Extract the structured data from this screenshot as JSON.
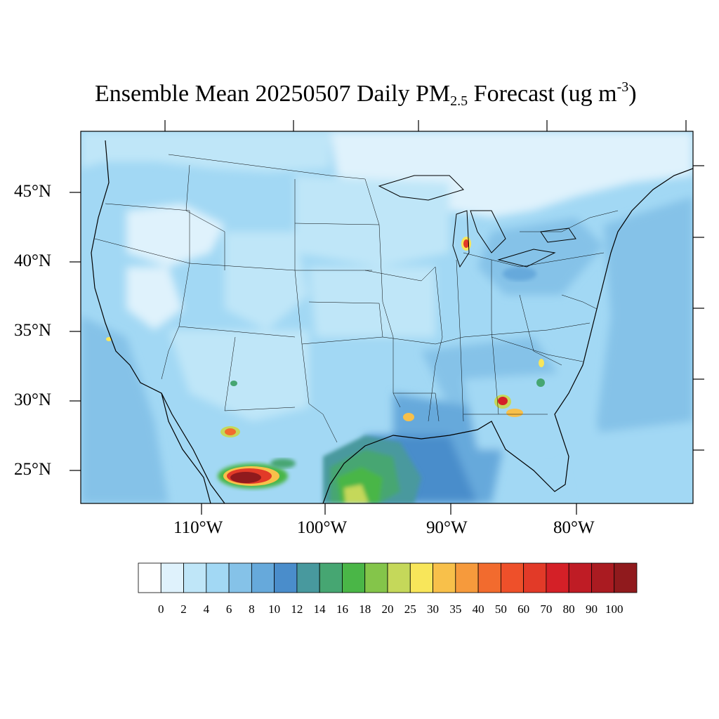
{
  "title": {
    "pre": "Ensemble Mean 20250507 Daily PM",
    "sub": "2.5",
    "mid": " Forecast (ug m",
    "sup": "-3",
    "post": ")"
  },
  "map": {
    "lat_labels": [
      "45°N",
      "40°N",
      "35°N",
      "30°N",
      "25°N"
    ],
    "lon_labels": [
      "110°W",
      "100°W",
      "90°W",
      "80°W"
    ],
    "background_color": "#a2d8f4",
    "hotspots": [
      {
        "name": "west-texas-chihuahua-plume",
        "value": 100
      },
      {
        "name": "sonora-plume",
        "value": 40
      },
      {
        "name": "chicago",
        "value": 40
      },
      {
        "name": "atlanta",
        "value": 50
      },
      {
        "name": "houston",
        "value": 30
      },
      {
        "name": "south-texas-plume",
        "value": 25
      }
    ]
  },
  "colorbar": {
    "colors": [
      "#ffffff",
      "#dff2fc",
      "#bfe6f8",
      "#a2d8f4",
      "#85c2e8",
      "#66a9db",
      "#4a8dcb",
      "#48999e",
      "#46a672",
      "#4ab647",
      "#84c54a",
      "#c5d85a",
      "#f8e65a",
      "#f8c04a",
      "#f69a3c",
      "#f26b2e",
      "#ee502a",
      "#e23a28",
      "#d42027",
      "#bf1c25",
      "#aa1b21",
      "#901a1d"
    ],
    "labels": [
      "0",
      "2",
      "4",
      "6",
      "8",
      "10",
      "12",
      "14",
      "16",
      "18",
      "20",
      "25",
      "30",
      "35",
      "40",
      "50",
      "60",
      "70",
      "80",
      "90",
      "100"
    ]
  }
}
